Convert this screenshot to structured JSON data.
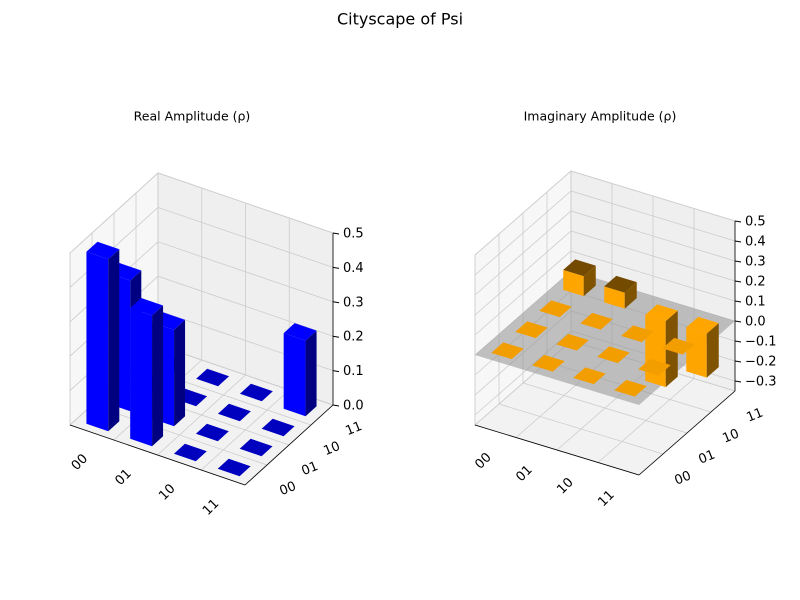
{
  "title": "Cityscape of Psi",
  "chart_data": [
    {
      "type": "bar3d",
      "title": "Real Amplitude (ρ)",
      "x_categories": [
        "00",
        "01",
        "10",
        "11"
      ],
      "y_categories": [
        "00",
        "01",
        "10",
        "11"
      ],
      "values": [
        [
          0.5,
          0.38,
          0,
          0
        ],
        [
          0.38,
          0.28,
          0,
          0
        ],
        [
          0,
          0,
          0,
          0
        ],
        [
          0,
          0,
          0,
          0.22
        ]
      ],
      "color": "#0000ff",
      "zlim": [
        0,
        0.5
      ],
      "zticks": [
        {
          "value": 0,
          "label": "0.0"
        },
        0.1,
        0.2,
        0.3,
        0.4,
        0.5
      ]
    },
    {
      "type": "bar3d",
      "title": "Imaginary Amplitude (ρ)",
      "x_categories": [
        "00",
        "01",
        "10",
        "11"
      ],
      "y_categories": [
        "00",
        "01",
        "10",
        "11"
      ],
      "values": [
        [
          0,
          0,
          0,
          0.1
        ],
        [
          0,
          0,
          0,
          0.08
        ],
        [
          0,
          0,
          0,
          -0.33
        ],
        [
          0,
          0,
          0,
          -0.22
        ]
      ],
      "color": "#ffa500",
      "zlim": [
        -0.35,
        0.5
      ],
      "zticks": [
        {
          "value": -0.3,
          "label": "−0.3"
        },
        {
          "value": -0.2,
          "label": "−0.2"
        },
        {
          "value": -0.1,
          "label": "−0.1"
        },
        {
          "value": 0,
          "label": "0.0"
        },
        0.1,
        0.2,
        0.3,
        0.4,
        0.5
      ]
    }
  ]
}
